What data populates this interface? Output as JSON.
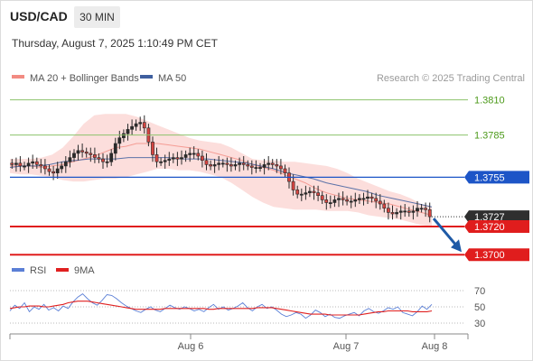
{
  "header": {
    "pair": "USD/CAD",
    "timeframe": "30 MIN",
    "datetime": "Thursday, August 7, 2025 1:10:49 PM CET"
  },
  "legend": {
    "items": [
      {
        "label": "MA 20 + Bollinger Bands",
        "color": "#f28b82"
      },
      {
        "label": "MA 50",
        "color": "#3f5f9f"
      }
    ],
    "credit": "Research © 2025 Trading Central"
  },
  "chart_data": [
    {
      "type": "candlestick",
      "title": "USD/CAD",
      "timeframe": "30 MIN",
      "x_ticks": [
        "Aug 6",
        "Aug 7",
        "Aug 8"
      ],
      "ylim": [
        1.3695,
        1.382
      ],
      "grid": false,
      "legend_position": "top-left",
      "close_series": [
        1.3764,
        1.3765,
        1.3763,
        1.3763,
        1.3765,
        1.3766,
        1.3764,
        1.3763,
        1.3761,
        1.3759,
        1.3758,
        1.3761,
        1.3763,
        1.3766,
        1.3769,
        1.3772,
        1.3774,
        1.3773,
        1.3772,
        1.3771,
        1.3769,
        1.3768,
        1.3766,
        1.3766,
        1.3772,
        1.3779,
        1.3783,
        1.3786,
        1.3789,
        1.3791,
        1.3793,
        1.3794,
        1.379,
        1.378,
        1.3771,
        1.3766,
        1.3766,
        1.3767,
        1.3768,
        1.3769,
        1.3768,
        1.3769,
        1.3771,
        1.3772,
        1.3772,
        1.377,
        1.3767,
        1.3764,
        1.3763,
        1.3764,
        1.3765,
        1.3765,
        1.3764,
        1.3763,
        1.3764,
        1.3765,
        1.3764,
        1.3763,
        1.3762,
        1.3762,
        1.3762,
        1.3764,
        1.3765,
        1.3764,
        1.3763,
        1.3761,
        1.3758,
        1.3752,
        1.3746,
        1.3743,
        1.3743,
        1.3744,
        1.3745,
        1.3744,
        1.3742,
        1.3739,
        1.3737,
        1.3737,
        1.3739,
        1.374,
        1.3739,
        1.3738,
        1.3738,
        1.3739,
        1.374,
        1.374,
        1.3741,
        1.374,
        1.3738,
        1.3736,
        1.3733,
        1.373,
        1.3729,
        1.373,
        1.3731,
        1.3731,
        1.373,
        1.3731,
        1.3733,
        1.3733,
        1.3732,
        1.3727
      ],
      "moving_averages": [
        {
          "name": "MA 20",
          "color": "#f28b82",
          "values": [
            1.3763,
            1.3763,
            1.3763,
            1.3762,
            1.3763,
            1.3764,
            1.3766,
            1.3768,
            1.377,
            1.3773,
            1.3776,
            1.3777,
            1.3779,
            1.3779,
            1.3779,
            1.3778,
            1.3777,
            1.3776,
            1.3775,
            1.3773,
            1.3771,
            1.3769,
            1.3767,
            1.3764,
            1.3762,
            1.376,
            1.3757,
            1.3754,
            1.3751,
            1.3747,
            1.3744,
            1.3742,
            1.374,
            1.3739,
            1.3738,
            1.3737,
            1.3736,
            1.3734,
            1.3732,
            1.373,
            1.3728
          ]
        },
        {
          "name": "MA 50",
          "color": "#3f5f9f",
          "values": [
            1.3762,
            1.3763,
            1.3763,
            1.3764,
            1.3766,
            1.3767,
            1.3768,
            1.3768,
            1.3768,
            1.3769,
            1.3769,
            1.3769,
            1.3769,
            1.3768,
            1.3768,
            1.3768,
            1.3767,
            1.3766,
            1.3765,
            1.3763,
            1.3761,
            1.3758,
            1.3756,
            1.3754,
            1.3751,
            1.3749,
            1.3747,
            1.3745,
            1.3742,
            1.374,
            1.3738,
            1.3736,
            1.3734
          ]
        }
      ],
      "bollinger_bands": {
        "upper": [
          1.3768,
          1.3768,
          1.3768,
          1.3769,
          1.3771,
          1.3776,
          1.3784,
          1.3793,
          1.3799,
          1.38,
          1.38,
          1.38,
          1.3798,
          1.3795,
          1.3792,
          1.3789,
          1.3786,
          1.3783,
          1.3781,
          1.378,
          1.3779,
          1.3776,
          1.3772,
          1.3768,
          1.3767,
          1.3767,
          1.3766,
          1.3766,
          1.3765,
          1.3764,
          1.3763,
          1.3761,
          1.3758,
          1.3754,
          1.3751,
          1.3748,
          1.3745,
          1.3743,
          1.374,
          1.3736,
          1.3734
        ],
        "lower": [
          1.3758,
          1.3757,
          1.3757,
          1.3756,
          1.3755,
          1.3753,
          1.3752,
          1.3752,
          1.3753,
          1.3754,
          1.3754,
          1.3755,
          1.3757,
          1.3759,
          1.3761,
          1.3761,
          1.376,
          1.376,
          1.3759,
          1.3757,
          1.3755,
          1.3751,
          1.3746,
          1.3741,
          1.3737,
          1.3734,
          1.3733,
          1.3732,
          1.3732,
          1.3732,
          1.3731,
          1.3731,
          1.3731,
          1.373,
          1.3728,
          1.3727,
          1.3726,
          1.3725,
          1.3723,
          1.3721,
          1.372
        ]
      },
      "levels": [
        {
          "value": "1.3810",
          "price": 1.381,
          "kind": "resistance"
        },
        {
          "value": "1.3785",
          "price": 1.3785,
          "kind": "resistance"
        },
        {
          "value": "1.3755",
          "price": 1.3755,
          "kind": "pivot"
        },
        {
          "value": "1.3727",
          "price": 1.3727,
          "kind": "last"
        },
        {
          "value": "1.3720",
          "price": 1.372,
          "kind": "support"
        },
        {
          "value": "1.3700",
          "price": 1.37,
          "kind": "support"
        }
      ],
      "projection": {
        "from": 1.3727,
        "to": 1.37,
        "direction": "down"
      }
    },
    {
      "type": "line",
      "title": "",
      "ylim": [
        20,
        80
      ],
      "y_ticks": [
        "70",
        "50",
        "30"
      ],
      "reference_levels": [
        70,
        50,
        30
      ],
      "series": [
        {
          "name": "RSI",
          "color": "#5b7fd6",
          "values": [
            45,
            52,
            48,
            55,
            44,
            50,
            47,
            53,
            46,
            49,
            45,
            51,
            48,
            56,
            62,
            66,
            60,
            55,
            52,
            58,
            65,
            64,
            60,
            55,
            51,
            48,
            45,
            43,
            47,
            50,
            46,
            44,
            48,
            52,
            49,
            47,
            50,
            48,
            45,
            47,
            44,
            49,
            53,
            47,
            50,
            46,
            48,
            51,
            55,
            49,
            45,
            50,
            53,
            48,
            50,
            46,
            41,
            38,
            40,
            43,
            41,
            36,
            40,
            46,
            43,
            38,
            41,
            37,
            36,
            39,
            41,
            43,
            39,
            45,
            48,
            44,
            42,
            45,
            49,
            47,
            50,
            43,
            41,
            39,
            44,
            51,
            47,
            53
          ]
        },
        {
          "name": "9MA",
          "color": "#e02020",
          "values": [
            48,
            49,
            50,
            50,
            51,
            51,
            51,
            50,
            50,
            51,
            52,
            53,
            55,
            56,
            57,
            57,
            57,
            56,
            55,
            54,
            53,
            52,
            51,
            50,
            49,
            48,
            47,
            47,
            47,
            47,
            47,
            47,
            48,
            48,
            48,
            48,
            48,
            48,
            48,
            48,
            48,
            47,
            47,
            48,
            48,
            48,
            48,
            48,
            48,
            48,
            48,
            49,
            49,
            49,
            49,
            48,
            47,
            46,
            45,
            44,
            43,
            42,
            41,
            41,
            41,
            41,
            40,
            40,
            40,
            40,
            40,
            40,
            40,
            41,
            42,
            43,
            44,
            44,
            45,
            45,
            45,
            45,
            45,
            44,
            44,
            44,
            44,
            45
          ]
        }
      ],
      "x_ticks": [
        "Aug 6",
        "Aug 7",
        "Aug 8"
      ]
    }
  ]
}
